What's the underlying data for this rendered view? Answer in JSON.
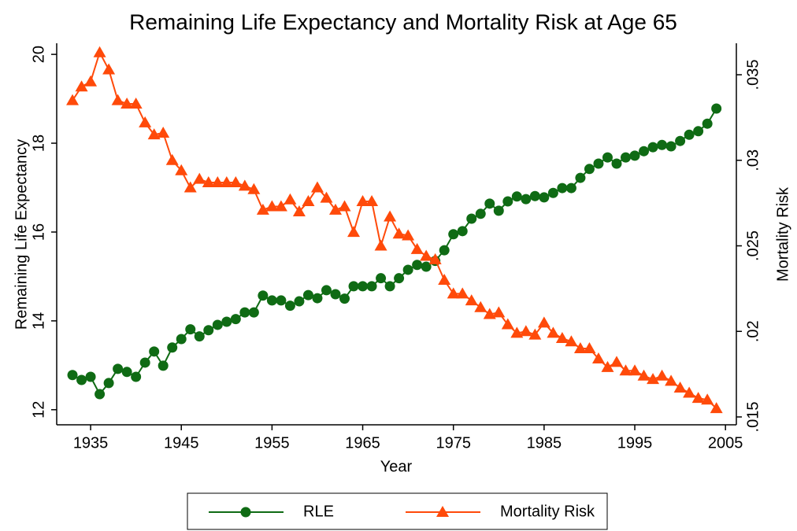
{
  "chart_data": {
    "type": "line",
    "title": "Remaining Life Expectancy and Mortality Risk at Age 65",
    "x_label": "Year",
    "y_label": "Remaining Life Expectancy",
    "y2_label": "Mortality Risk",
    "x": [
      1933,
      1934,
      1935,
      1936,
      1937,
      1938,
      1939,
      1940,
      1941,
      1942,
      1943,
      1944,
      1945,
      1946,
      1947,
      1948,
      1949,
      1950,
      1951,
      1952,
      1953,
      1954,
      1955,
      1956,
      1957,
      1958,
      1959,
      1960,
      1961,
      1962,
      1963,
      1964,
      1965,
      1966,
      1967,
      1968,
      1969,
      1970,
      1971,
      1972,
      1973,
      1974,
      1975,
      1976,
      1977,
      1978,
      1979,
      1980,
      1981,
      1982,
      1983,
      1984,
      1985,
      1986,
      1987,
      1988,
      1989,
      1990,
      1991,
      1992,
      1993,
      1994,
      1995,
      1996,
      1997,
      1998,
      1999,
      2000,
      2001,
      2002,
      2003,
      2004
    ],
    "series": [
      {
        "name": "RLE",
        "color": "#0f6b14",
        "marker": "circle",
        "values": [
          12.78,
          12.67,
          12.74,
          12.35,
          12.6,
          12.92,
          12.85,
          12.74,
          13.06,
          13.31,
          12.99,
          13.4,
          13.59,
          13.81,
          13.65,
          13.79,
          13.91,
          13.98,
          14.04,
          14.19,
          14.19,
          14.57,
          14.46,
          14.46,
          14.34,
          14.44,
          14.58,
          14.51,
          14.69,
          14.6,
          14.5,
          14.78,
          14.78,
          14.78,
          14.96,
          14.78,
          14.96,
          15.15,
          15.26,
          15.22,
          15.35,
          15.59,
          15.95,
          16.02,
          16.3,
          16.41,
          16.64,
          16.48,
          16.69,
          16.8,
          16.74,
          16.81,
          16.78,
          16.88,
          16.99,
          16.99,
          17.22,
          17.42,
          17.54,
          17.68,
          17.54,
          17.68,
          17.72,
          17.82,
          17.91,
          17.96,
          17.93,
          18.05,
          18.19,
          18.27,
          18.44,
          18.78
        ]
      },
      {
        "name": "Mortality Risk",
        "color": "#ff4a0a",
        "marker": "triangle",
        "axis": "y2",
        "values": [
          0.0335,
          0.0343,
          0.0346,
          0.0363,
          0.0353,
          0.0335,
          0.0333,
          0.0333,
          0.0322,
          0.0315,
          0.0316,
          0.03,
          0.0294,
          0.0284,
          0.0289,
          0.0287,
          0.0287,
          0.0287,
          0.0287,
          0.0285,
          0.0283,
          0.0271,
          0.0273,
          0.0273,
          0.0277,
          0.027,
          0.0276,
          0.0284,
          0.0278,
          0.0271,
          0.0273,
          0.0258,
          0.0276,
          0.0276,
          0.025,
          0.0267,
          0.0257,
          0.0256,
          0.0248,
          0.0244,
          0.0242,
          0.023,
          0.0222,
          0.0222,
          0.0218,
          0.0214,
          0.021,
          0.0211,
          0.0204,
          0.0199,
          0.02,
          0.0198,
          0.0205,
          0.0199,
          0.0196,
          0.0194,
          0.019,
          0.019,
          0.0184,
          0.0179,
          0.0182,
          0.0177,
          0.0177,
          0.0174,
          0.0172,
          0.0174,
          0.0171,
          0.0167,
          0.0164,
          0.0161,
          0.016,
          0.0155
        ]
      }
    ],
    "xlim": [
      1931.26,
      2006.2
    ],
    "xticks": [
      1935,
      1945,
      1955,
      1965,
      1975,
      1985,
      1995,
      2005
    ],
    "ylim": [
      11.66,
      20.25
    ],
    "yticks": [
      12,
      14,
      16,
      18,
      20
    ],
    "y2lim": [
      0.01454,
      0.03684
    ],
    "y2ticks": [
      {
        "value": 0.015,
        "label": ".015"
      },
      {
        "value": 0.02,
        "label": ".02"
      },
      {
        "value": 0.025,
        "label": ".025"
      },
      {
        "value": 0.03,
        "label": ".03"
      },
      {
        "value": 0.035,
        "label": ".035"
      }
    ],
    "grid": false,
    "legend": "bottom"
  }
}
